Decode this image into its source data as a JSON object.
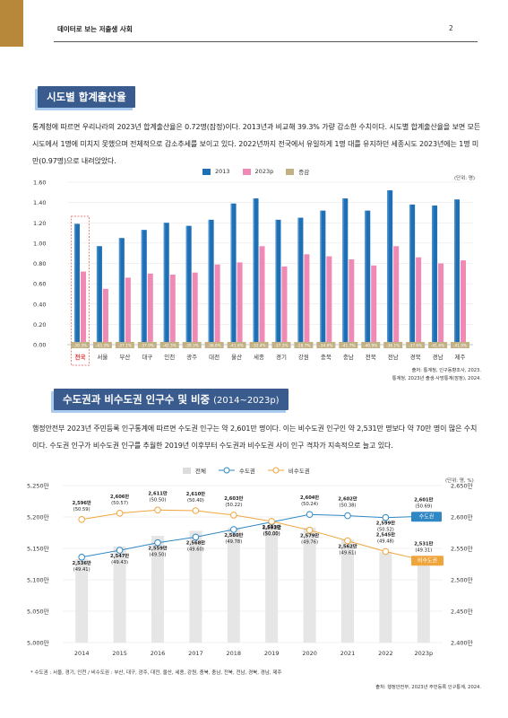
{
  "header": {
    "title": "데이터로 보는 저출생 사회",
    "page": "2"
  },
  "section1": {
    "title": "시도별 합계출산율",
    "paragraph": "통계청에 따르면 우리나라의 2023년 합계출산율은 0.72명(잠정)이다. 2013년과 비교해 39.3% 가량 감소한 수치이다. 시도별 합계출산율을 보면 모든 시도에서 1명에 미치지 못했으며 전체적으로 감소추세를 보이고 있다. 2022년까지 전국에서 유일하게 1명 대를 유지하던 세종시도 2023년에는 1명 미만(0.97명)으로 내려앉았다.",
    "unit": "(단위: 명)",
    "source_line1": "출처: 통계청, 인구동향조사, 2023.",
    "source_line2": "통계청, 2023년 출생·사망통계(잠정), 2024."
  },
  "section2": {
    "title": "수도권과 비수도권 인구수 및 비중",
    "title_sub": "(2014~2023p)",
    "paragraph": "행정안전부 2023년 주민등록 인구통계에 따르면 수도권 인구는 약 2,601만 명이다. 이는 비수도권 인구인 약 2,531만 명보다 약 70만 명이 많은 수치이다. 수도권 인구가 비수도권 인구를 추월한 2019년 이후부터 수도권과 비수도권 사이 인구 격차가 지속적으로 늘고 있다.",
    "unit": "(단위: 명, %)",
    "source": "출처: 행정안전부, 2023년 주민등록 인구통계, 2024.",
    "footnote": "* 수도권 : 서울, 경기, 인천 / 비수도권 : 부산, 대구, 광주, 대전, 울산, 세종, 강원, 충북, 충남, 전북, 전남, 경북, 경남, 제주"
  },
  "colors": {
    "bar2013": "#1f6fb5",
    "bar2023": "#ef8ab5",
    "change": "#c2b184",
    "capital": "#2f88c4",
    "noncapital": "#f0a53c",
    "total": "#e6e6e6",
    "title_bg": "#3a5b8e"
  },
  "chart_data": [
    {
      "type": "bar",
      "categories": [
        "전국",
        "서울",
        "부산",
        "대구",
        "인천",
        "광주",
        "대전",
        "울산",
        "세종",
        "경기",
        "강원",
        "충북",
        "충남",
        "전북",
        "전남",
        "경북",
        "경남",
        "제주"
      ],
      "series": [
        {
          "name": "2013",
          "values": [
            1.19,
            0.97,
            1.05,
            1.13,
            1.2,
            1.17,
            1.23,
            1.39,
            1.44,
            1.23,
            1.25,
            1.32,
            1.44,
            1.32,
            1.52,
            1.38,
            1.37,
            1.43
          ]
        },
        {
          "name": "2023p",
          "values": [
            0.72,
            0.55,
            0.66,
            0.7,
            0.69,
            0.71,
            0.79,
            0.81,
            0.97,
            0.77,
            0.89,
            0.87,
            0.84,
            0.78,
            0.97,
            0.86,
            0.8,
            0.83
          ]
        },
        {
          "name": "증감",
          "values": [
            "-39.3%",
            "-43.3%",
            "-37.1%",
            "-37.9%",
            "-42.3%",
            "-39.3%",
            "-36.0%",
            "-41.6%",
            "-32.4%",
            "-37.2%",
            "-28.7%",
            "-34.6%",
            "-41.7%",
            "-40.9%",
            "-36.1%",
            "-37.6%",
            "-41.6%",
            "-41.9%"
          ]
        }
      ],
      "ylim": [
        0,
        1.6
      ],
      "yticks": [
        "1.60",
        "1.40",
        "1.20",
        "1.00",
        "0.80",
        "0.60",
        "0.40",
        "0.20",
        "0.00"
      ],
      "yticks_values": [
        1.6,
        1.4,
        1.2,
        1.0,
        0.8,
        0.6,
        0.4,
        0.2,
        0.0
      ],
      "highlight_category": "전국",
      "legend_position": "top"
    },
    {
      "type": "line",
      "x": [
        "2014",
        "2015",
        "2016",
        "2017",
        "2018",
        "2019",
        "2020",
        "2021",
        "2022",
        "2023p"
      ],
      "series": [
        {
          "name": "전체",
          "type": "bar",
          "axis": "left",
          "values": [
            5133,
            5153,
            5170,
            5178,
            5183,
            5185,
            5183,
            5164,
            5144,
            5133
          ]
        },
        {
          "name": "수도권",
          "axis": "right",
          "values": [
            2536,
            2547,
            2559,
            2568,
            2580,
            2592,
            2604,
            2602,
            2599,
            2601
          ],
          "labels": [
            "2,536만",
            "2,547만",
            "2,559만",
            "2,568만",
            "2,580만",
            "2,592만",
            "2,604만",
            "2,602만",
            "2,599만",
            "2,601만"
          ],
          "shares": [
            "(49.41)",
            "(49.43)",
            "(49.50)",
            "(49.60)",
            "(49.78)",
            "(50.00)",
            "(50.24)",
            "(50.38)",
            "(50.52)",
            "(50.69)"
          ]
        },
        {
          "name": "비수도권",
          "axis": "right",
          "values": [
            2596,
            2606,
            2611,
            2610,
            2603,
            2593,
            2579,
            2562,
            2545,
            2531
          ],
          "labels": [
            "2,596만",
            "2,606만",
            "2,611만",
            "2,610만",
            "2,603만",
            "2,593만",
            "2,579만",
            "2,562만",
            "2,545만",
            "2,531만"
          ],
          "shares": [
            "(50.59)",
            "(50.57)",
            "(50.50)",
            "(50.40)",
            "(50.22)",
            "(50.00)",
            "(49.76)",
            "(49.61)",
            "(49.48)",
            "(49.31)"
          ]
        }
      ],
      "left_axis": {
        "ylim": [
          5000,
          5250
        ],
        "ticks": [
          "5,250만",
          "5,200만",
          "5,150만",
          "5,100만",
          "5,050만",
          "5,000만"
        ]
      },
      "right_axis": {
        "ylim": [
          2400,
          2650
        ],
        "ticks": [
          "2,650만",
          "2,600만",
          "2,550만",
          "2,500만",
          "2,450만",
          "2,400만"
        ]
      },
      "end_tags": {
        "capital": "수도권",
        "noncapital": "비수도권"
      },
      "legend_position": "top"
    }
  ]
}
